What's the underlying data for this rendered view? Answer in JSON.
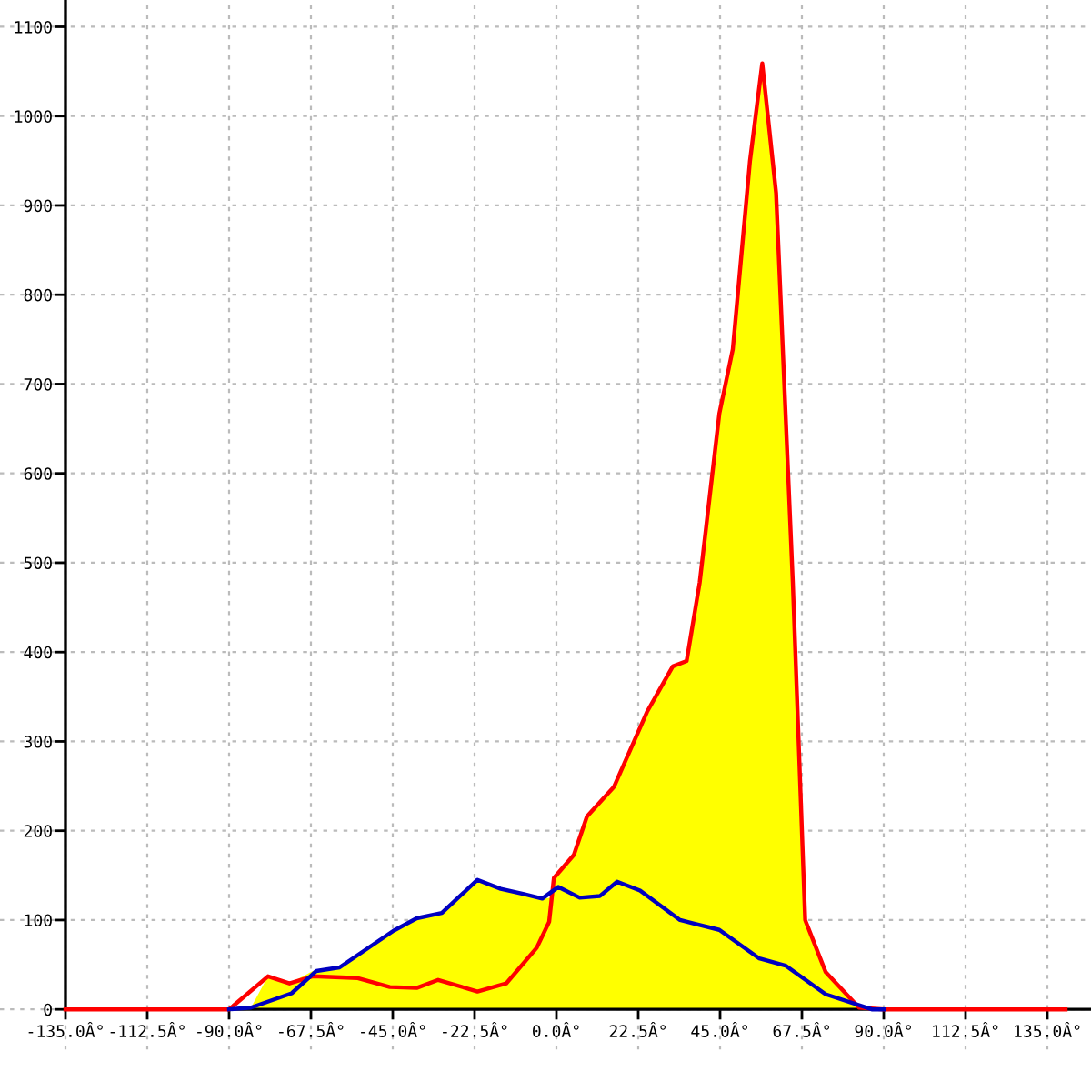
{
  "chart_data": {
    "type": "line",
    "xlim": [
      -153,
      147
    ],
    "ylim": [
      -45,
      1130
    ],
    "xticks": [
      {
        "value": -135,
        "label": "-135.0Â°"
      },
      {
        "value": -112.5,
        "label": "-112.5Â°"
      },
      {
        "value": -90,
        "label": "-90.0Â°"
      },
      {
        "value": -67.5,
        "label": "-67.5Â°"
      },
      {
        "value": -45,
        "label": "-45.0Â°"
      },
      {
        "value": -22.5,
        "label": "-22.5Â°"
      },
      {
        "value": 0,
        "label": "0.0Â°"
      },
      {
        "value": 22.5,
        "label": "22.5Â°"
      },
      {
        "value": 45,
        "label": "45.0Â°"
      },
      {
        "value": 67.5,
        "label": "67.5Â°"
      },
      {
        "value": 90,
        "label": "90.0Â°"
      },
      {
        "value": 112.5,
        "label": "112.5Â°"
      },
      {
        "value": 135,
        "label": "135.0Â°"
      }
    ],
    "yticks": [
      0,
      100,
      200,
      300,
      400,
      500,
      600,
      700,
      800,
      900,
      1000,
      1100
    ],
    "grid": true,
    "marker": "none",
    "line_style": "solid",
    "series": [
      {
        "type": "area",
        "color": "#ffff00",
        "x": [
          -150,
          -90,
          -84,
          -79.3,
          -73.4,
          -67,
          -59.6,
          -44.8,
          -38.4,
          -31.5,
          -21.7,
          -15.3,
          -8.9,
          -3.9,
          -1.5,
          -0.7,
          4.8,
          8.4,
          15.8,
          24.9,
          32,
          35.8,
          39.4,
          44.8,
          48.5,
          53.2,
          56.6,
          60.4,
          65,
          68.4,
          74,
          83.2,
          90,
          140
        ],
        "values": [
          0,
          0,
          2,
          37,
          29,
          43,
          47,
          88,
          102,
          108,
          145,
          135,
          129,
          124,
          125,
          147,
          173,
          216,
          249,
          333,
          384,
          390,
          478,
          667,
          739,
          949,
          1059,
          914,
          478,
          100,
          42,
          2,
          0,
          0
        ]
      },
      {
        "color": "#ff0000",
        "x": [
          -135,
          -90,
          -79.3,
          -73.4,
          -67,
          -54.6,
          -45.8,
          -38.4,
          -32.5,
          -21.7,
          -13.8,
          -5.4,
          -2,
          -0.7,
          4.8,
          8.4,
          15.8,
          24.9,
          32,
          35.8,
          39.4,
          44.8,
          48.5,
          53.2,
          56.6,
          60.4,
          65,
          68.4,
          74,
          83.2,
          90,
          140
        ],
        "values": [
          0,
          0,
          37,
          29,
          37,
          35,
          25,
          24,
          33,
          20,
          29,
          69,
          98,
          147,
          173,
          216,
          249,
          333,
          384,
          390,
          478,
          667,
          739,
          949,
          1059,
          914,
          478,
          100,
          42,
          2,
          0,
          0
        ]
      },
      {
        "color": "#0000c0",
        "x": [
          -90,
          -84,
          -72.8,
          -66,
          -59.6,
          -44.8,
          -38.4,
          -31.5,
          -21.7,
          -15.3,
          -8.9,
          -3.9,
          0.5,
          6.4,
          12,
          16.7,
          23,
          34,
          44.8,
          55.8,
          63,
          74,
          86.7,
          90
        ],
        "values": [
          0,
          2,
          18,
          43,
          47,
          88,
          102,
          108,
          145,
          135,
          129,
          124,
          137,
          125,
          127,
          143,
          133,
          100,
          89,
          57,
          49,
          17,
          0,
          0
        ]
      }
    ]
  }
}
